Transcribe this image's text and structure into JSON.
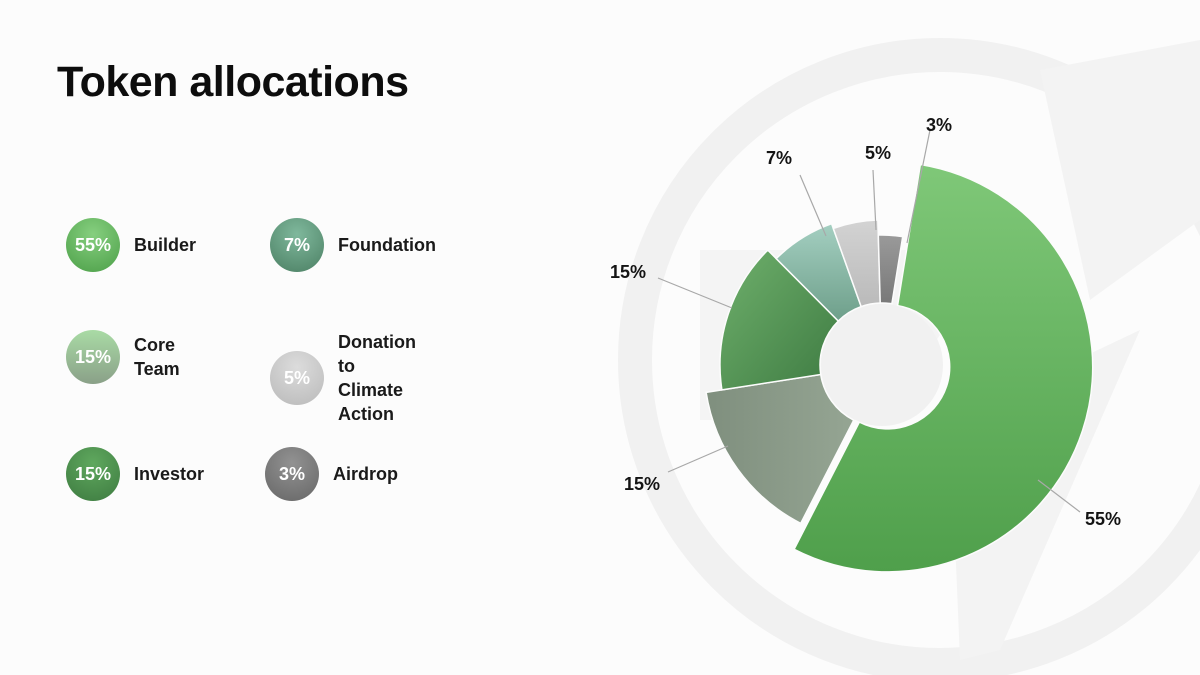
{
  "title": "Token allocations",
  "legend": [
    {
      "value": "55%",
      "label": "Builder",
      "color": "#5fb55a"
    },
    {
      "value": "7%",
      "label": "Foundation",
      "color": "#5f9a7c"
    },
    {
      "value": "15%",
      "label": "Core Team",
      "color": "#95c694"
    },
    {
      "value": "5%",
      "label": "Donation to\nClimate Action",
      "color": "#cbcbcb"
    },
    {
      "value": "15%",
      "label": "Investor",
      "color": "#4d8f50"
    },
    {
      "value": "3%",
      "label": "Airdrop",
      "color": "#7d7d7d"
    }
  ],
  "chart_data": {
    "type": "pie",
    "variant": "donut",
    "title": "",
    "slices": [
      {
        "label": "Builder",
        "value": 55,
        "display": "55%",
        "color": "#5fb55a"
      },
      {
        "label": "Core Team",
        "value": 15,
        "display": "15%",
        "color": "#8a9a88"
      },
      {
        "label": "Investor",
        "value": 15,
        "display": "15%",
        "color": "#4d8f50"
      },
      {
        "label": "Foundation",
        "value": 7,
        "display": "7%",
        "color": "#8fbfae"
      },
      {
        "label": "Donation to Climate Action",
        "value": 5,
        "display": "5%",
        "color": "#c8c8c8"
      },
      {
        "label": "Airdrop",
        "value": 3,
        "display": "3%",
        "color": "#8a8a8a"
      }
    ],
    "legend_position": "left"
  }
}
